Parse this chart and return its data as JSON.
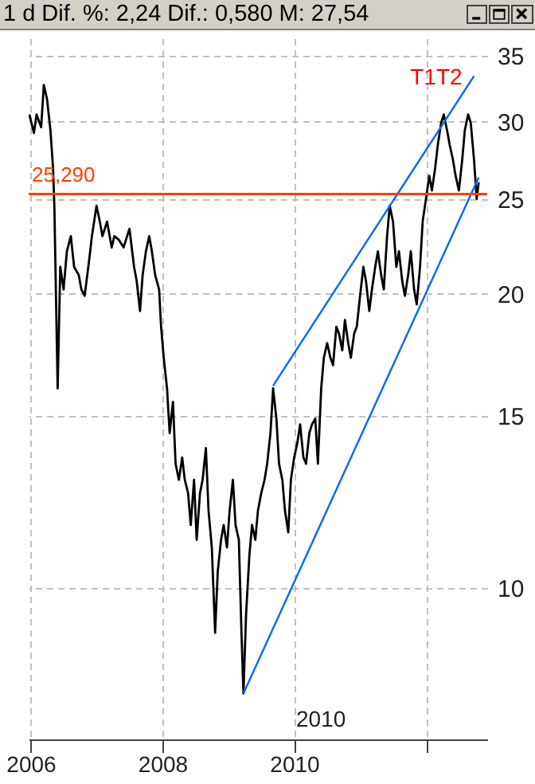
{
  "chart_data": {
    "type": "line",
    "title": "1 d Dif. %: 2,24 Dif.: 0,580 M: 27,54",
    "log": true,
    "grid": true,
    "marker": "none",
    "line_style": "solid",
    "xlim": [
      2005.97,
      2012.93
    ],
    "xticks": [
      2006,
      2008,
      2010,
      {
        "value": 2012,
        "label": null
      }
    ],
    "ylim": [
      7,
      36.5
    ],
    "yticks": [
      10,
      15,
      20,
      25,
      30,
      35
    ],
    "ref_lines": [
      {
        "axis": "y",
        "value": 25.29,
        "label": "25,290",
        "color": "#ff4000"
      }
    ],
    "annotations": [
      "T1T2",
      "2010"
    ],
    "series": [
      {
        "color": "#000000",
        "x": [
          2005.98,
          2006.05,
          2006.09,
          2006.16,
          2006.2,
          2006.25,
          2006.3,
          2006.34,
          2006.36,
          2006.41,
          2006.45,
          2006.5,
          2006.55,
          2006.61,
          2006.66,
          2006.73,
          2006.77,
          2006.82,
          2006.89,
          2006.93,
          2007.0,
          2007.05,
          2007.09,
          2007.16,
          2007.23,
          2007.27,
          2007.34,
          2007.41,
          2007.5,
          2007.57,
          2007.61,
          2007.66,
          2007.7,
          2007.75,
          2007.8,
          2007.84,
          2007.89,
          2007.95,
          2007.98,
          2008.02,
          2008.07,
          2008.11,
          2008.16,
          2008.2,
          2008.25,
          2008.3,
          2008.34,
          2008.39,
          2008.43,
          2008.48,
          2008.52,
          2008.57,
          2008.61,
          2008.66,
          2008.7,
          2008.75,
          2008.8,
          2008.84,
          2008.89,
          2008.93,
          2008.98,
          2009.02,
          2009.07,
          2009.11,
          2009.16,
          2009.2,
          2009.23,
          2009.27,
          2009.32,
          2009.36,
          2009.41,
          2009.45,
          2009.5,
          2009.55,
          2009.59,
          2009.64,
          2009.68,
          2009.73,
          2009.77,
          2009.82,
          2009.86,
          2009.91,
          2009.95,
          2010.0,
          2010.05,
          2010.09,
          2010.14,
          2010.18,
          2010.23,
          2010.27,
          2010.32,
          2010.36,
          2010.41,
          2010.45,
          2010.5,
          2010.55,
          2010.59,
          2010.64,
          2010.68,
          2010.73,
          2010.77,
          2010.82,
          2010.86,
          2010.91,
          2010.95,
          2011.0,
          2011.05,
          2011.09,
          2011.14,
          2011.18,
          2011.23,
          2011.27,
          2011.32,
          2011.36,
          2011.41,
          2011.45,
          2011.5,
          2011.55,
          2011.59,
          2011.64,
          2011.68,
          2011.73,
          2011.77,
          2011.82,
          2011.86,
          2011.91,
          2011.95,
          2012.0,
          2012.05,
          2012.09,
          2012.14,
          2012.18,
          2012.23,
          2012.27,
          2012.32,
          2012.36,
          2012.41,
          2012.45,
          2012.5,
          2012.55,
          2012.59,
          2012.64,
          2012.68,
          2012.73,
          2012.77,
          2012.8
        ],
        "values": [
          30.5,
          29.2,
          30.5,
          29.6,
          32.7,
          31.6,
          29.4,
          26.9,
          24.6,
          16.0,
          21.3,
          20.2,
          22.1,
          22.9,
          21.3,
          20.9,
          20.2,
          19.9,
          21.7,
          22.9,
          24.6,
          23.7,
          22.9,
          23.7,
          22.3,
          22.9,
          22.7,
          22.3,
          23.3,
          21.3,
          20.6,
          19.2,
          20.9,
          22.1,
          22.9,
          22.1,
          20.9,
          20.2,
          18.5,
          17.2,
          16.0,
          14.4,
          15.5,
          13.4,
          12.9,
          13.6,
          12.9,
          12.5,
          11.6,
          12.9,
          11.2,
          12.5,
          12.9,
          13.9,
          12.0,
          11.0,
          9.0,
          10.4,
          11.2,
          11.6,
          11.0,
          12.0,
          12.9,
          11.6,
          11.2,
          9.0,
          7.8,
          9.4,
          10.8,
          11.6,
          11.2,
          12.0,
          12.5,
          12.9,
          13.4,
          14.4,
          16.0,
          14.9,
          13.4,
          12.9,
          12.0,
          11.4,
          12.9,
          13.6,
          14.1,
          14.7,
          13.6,
          13.4,
          14.4,
          14.7,
          14.9,
          13.4,
          16.0,
          17.2,
          17.8,
          17.2,
          16.9,
          18.5,
          18.2,
          17.5,
          18.8,
          17.8,
          17.2,
          18.2,
          18.5,
          19.9,
          21.3,
          20.6,
          19.2,
          20.2,
          21.3,
          22.1,
          20.9,
          20.2,
          22.9,
          24.6,
          23.7,
          21.3,
          22.1,
          20.6,
          19.9,
          20.9,
          22.1,
          20.2,
          19.5,
          21.3,
          23.7,
          25.0,
          26.4,
          25.5,
          26.9,
          28.4,
          29.9,
          30.5,
          29.4,
          28.4,
          27.4,
          26.4,
          25.5,
          27.4,
          29.4,
          30.5,
          29.9,
          27.4,
          25.0,
          26.0
        ]
      },
      {
        "type": "line",
        "color": "#0066ff",
        "x": [
          2009.68,
          2012.73
        ],
        "values": [
          16.1,
          33.4
        ]
      },
      {
        "type": "line",
        "color": "#0066ff",
        "x": [
          2009.23,
          2012.8
        ],
        "values": [
          7.8,
          26.3
        ]
      }
    ]
  }
}
